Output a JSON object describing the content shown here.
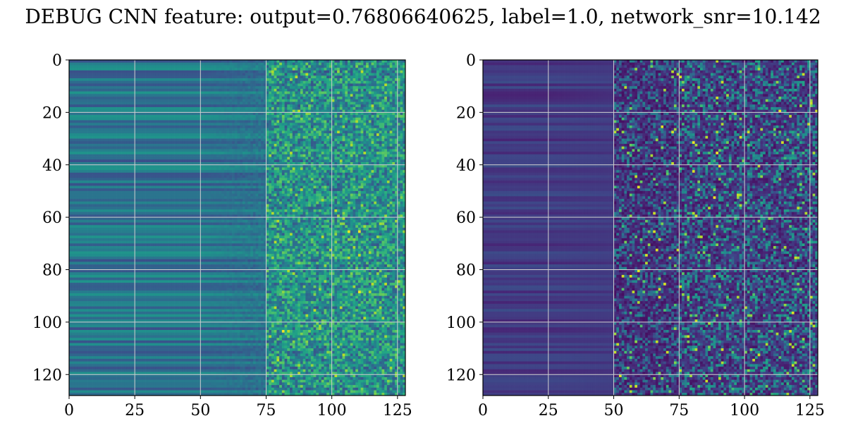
{
  "figure": {
    "title": "DEBUG CNN feature: output=0.76806640625, label=1.0, network_snr=10.142"
  },
  "chart_data": [
    {
      "type": "heatmap",
      "title": "",
      "xlabel": "",
      "ylabel": "",
      "colormap": "viridis",
      "grid": true,
      "grid_color": "#d0d0d0",
      "rows": 128,
      "cols": 128,
      "xlim": [
        0,
        128
      ],
      "ylim": [
        128,
        0
      ],
      "xticks": [
        0,
        25,
        50,
        75,
        100,
        125
      ],
      "yticks": [
        0,
        20,
        40,
        60,
        80,
        100,
        120
      ],
      "description_of_values": "smooth row-wise banding for columns 0-75, noisy high-variance values for columns 75-128",
      "value_range": [
        0,
        1
      ],
      "base_level": 0.38,
      "noise_start_col": 75,
      "hotspots": [
        [
          65,
          110
        ],
        [
          65,
          106
        ],
        [
          103,
          81
        ],
        [
          88,
          110
        ]
      ]
    },
    {
      "type": "heatmap",
      "title": "",
      "xlabel": "",
      "ylabel": "",
      "colormap": "viridis",
      "grid": true,
      "grid_color": "#d0d0d0",
      "rows": 128,
      "cols": 128,
      "xlim": [
        0,
        128
      ],
      "ylim": [
        128,
        0
      ],
      "xticks": [
        0,
        25,
        50,
        75,
        100,
        125
      ],
      "yticks": [
        0,
        20,
        40,
        60,
        80,
        100,
        120
      ],
      "description_of_values": "mostly dark (low) values for columns 0-50, sparse bright noise for columns 50-128",
      "value_range": [
        0,
        1
      ],
      "base_level": 0.12,
      "noise_start_col": 50,
      "hotspots": [
        [
          35,
          89
        ],
        [
          31,
          80
        ],
        [
          19,
          113
        ],
        [
          52,
          88
        ],
        [
          40,
          90
        ]
      ]
    }
  ]
}
